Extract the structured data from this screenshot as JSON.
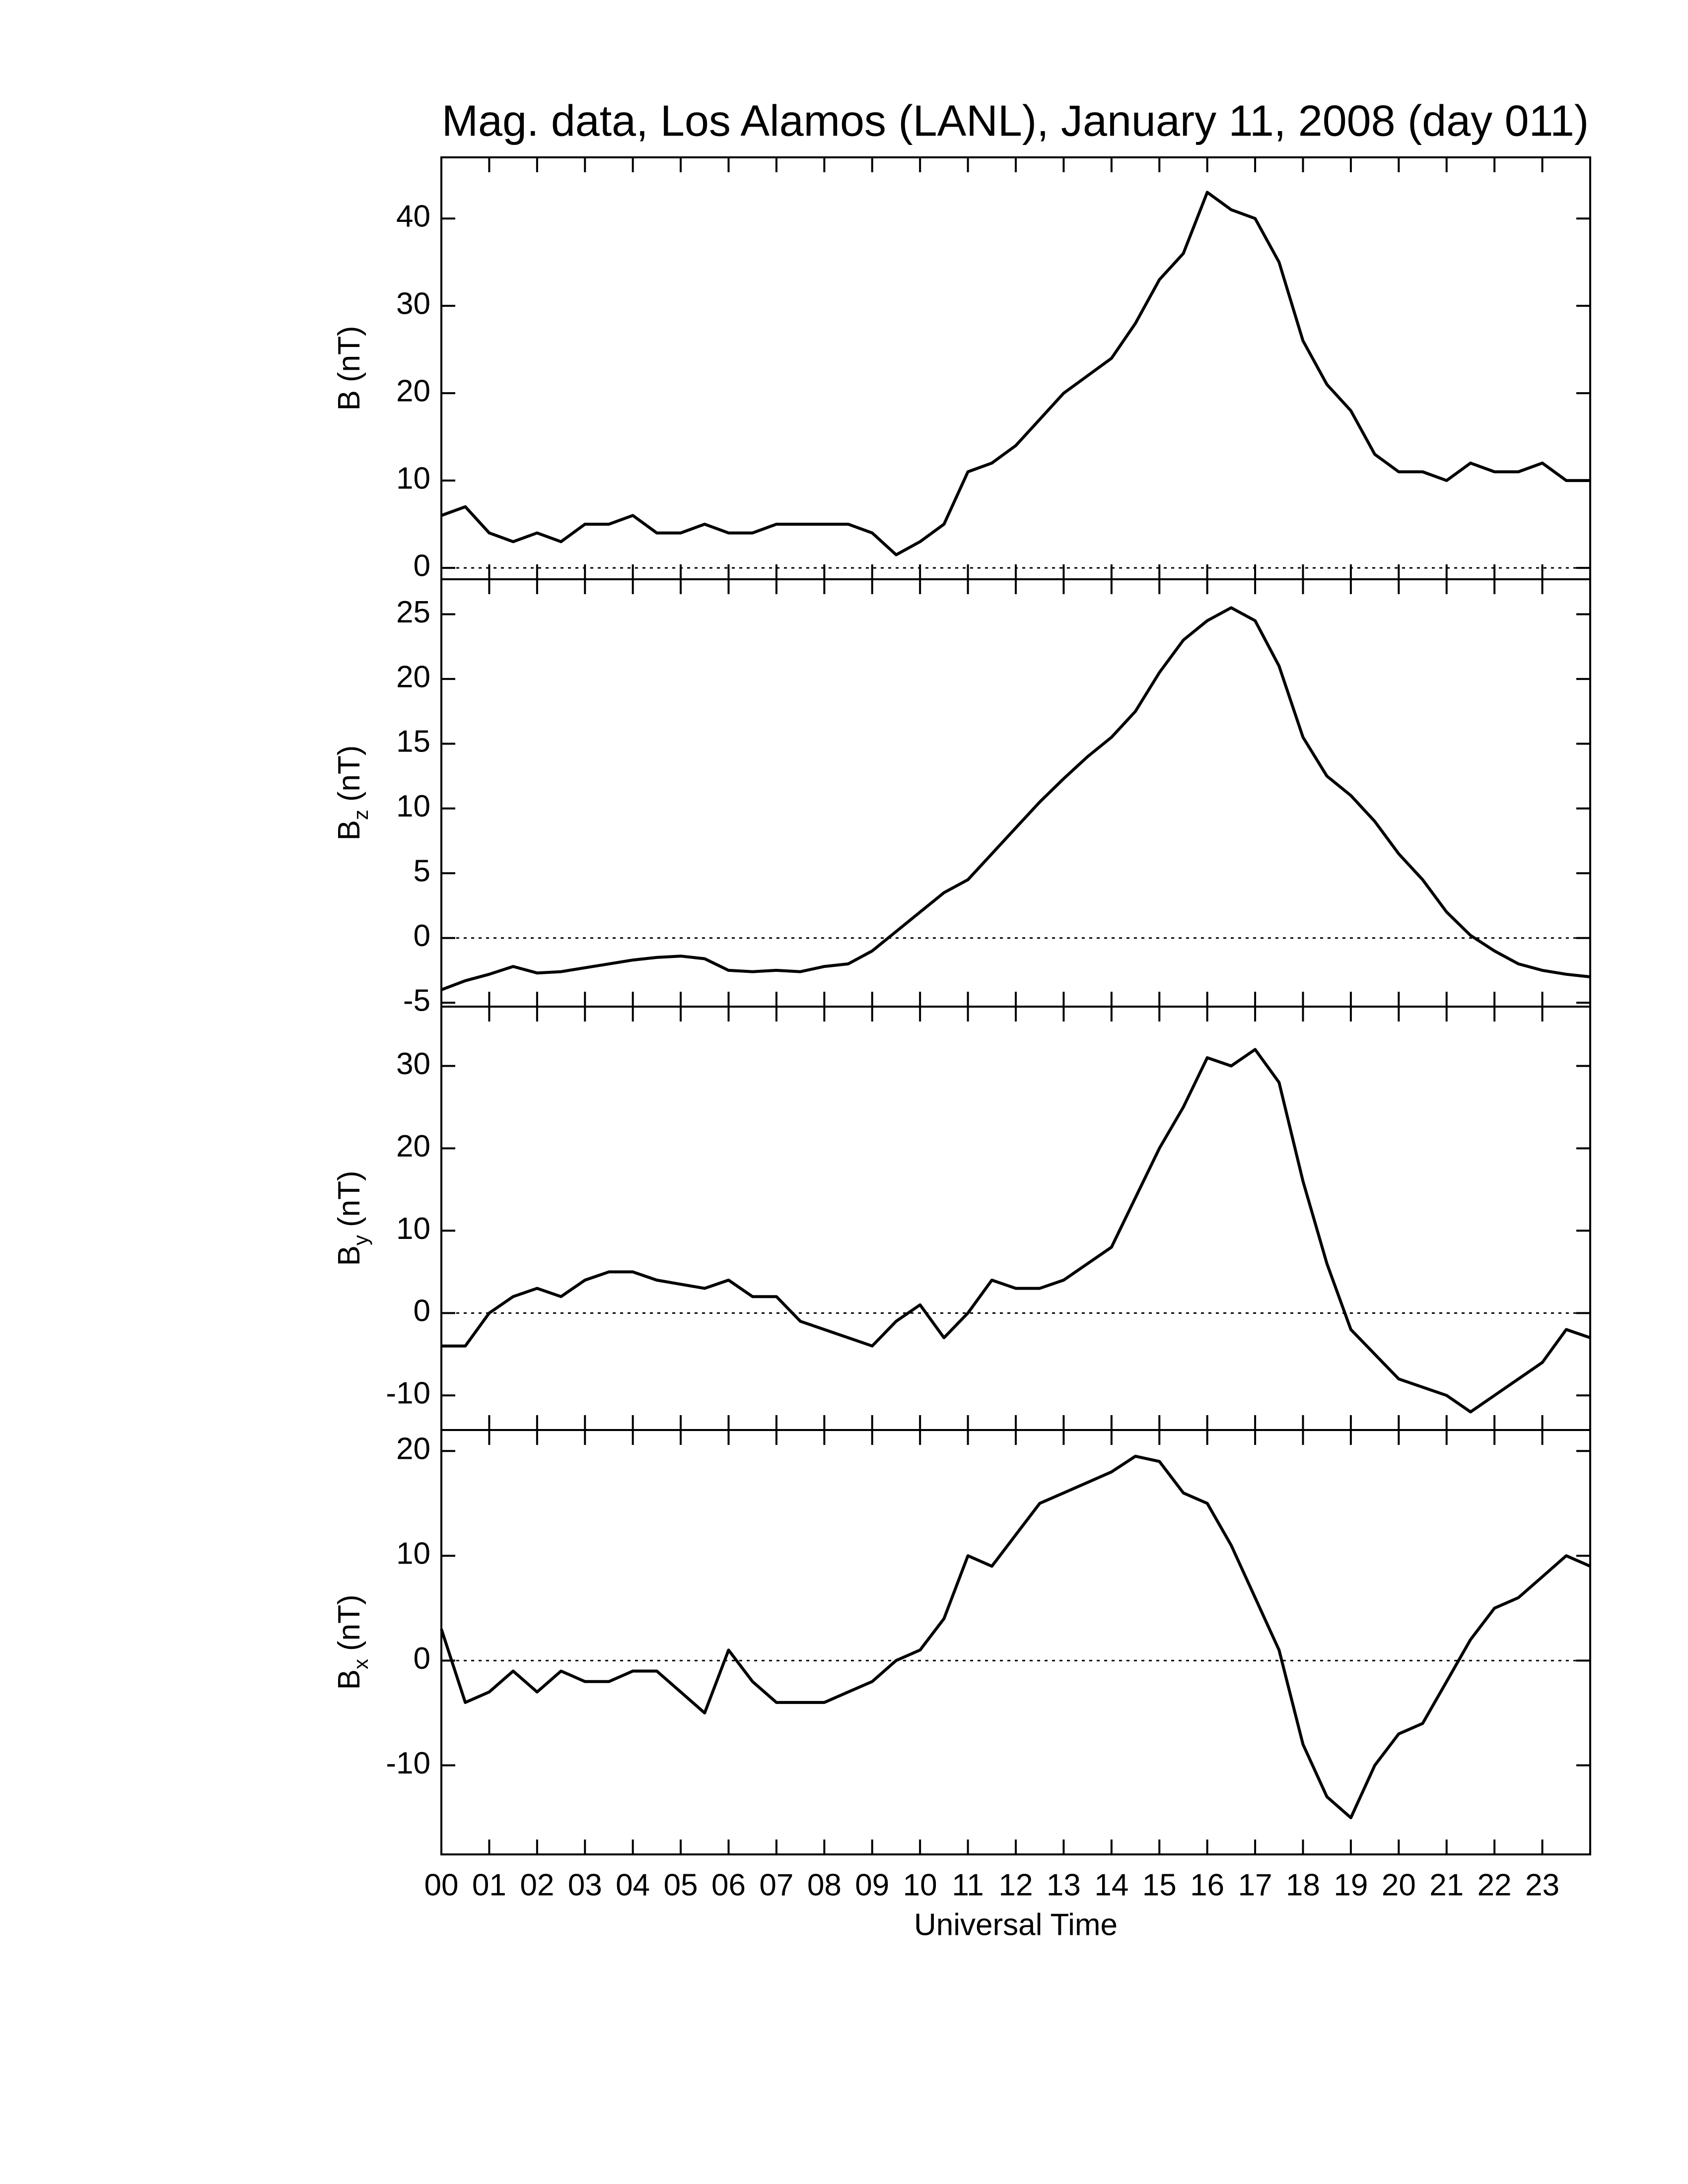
{
  "chart_data": [
    {
      "type": "line",
      "title": "Mag. data, Los Alamos (LANL), January 11, 2008 (day 011)",
      "ylabel": {
        "base": "B",
        "unit": "(nT)"
      },
      "x": [
        0,
        0.5,
        1,
        1.5,
        2,
        2.5,
        3,
        3.5,
        4,
        4.5,
        5,
        5.5,
        6,
        6.5,
        7,
        7.5,
        8,
        8.5,
        9,
        9.5,
        10,
        10.5,
        11,
        11.5,
        12,
        12.5,
        13,
        13.5,
        14,
        14.5,
        15,
        15.5,
        16,
        16.5,
        17,
        17.5,
        18,
        18.5,
        19,
        19.5,
        20,
        20.5,
        21,
        21.5,
        22,
        22.5,
        23,
        23.5,
        24
      ],
      "series": [
        {
          "color": "#000000",
          "values": [
            6,
            7,
            4,
            3,
            4,
            3,
            5,
            5,
            6,
            4,
            4,
            5,
            4,
            4,
            5,
            5,
            5,
            5,
            4,
            1.5,
            3,
            5,
            11,
            12,
            14,
            17,
            20,
            22,
            24,
            28,
            33,
            36,
            43,
            41,
            40,
            35,
            26,
            21,
            18,
            13,
            11,
            11,
            10,
            12,
            11,
            11,
            12,
            10,
            10
          ]
        }
      ],
      "xlim": [
        0,
        24
      ],
      "ylim": [
        -1.3,
        47
      ],
      "yticks": [
        0,
        10,
        20,
        30,
        40
      ],
      "zero_line": true
    },
    {
      "type": "line",
      "ylabel": {
        "base": "B",
        "sub": "z",
        "unit": "(nT)"
      },
      "x": [
        0,
        0.5,
        1,
        1.5,
        2,
        2.5,
        3,
        3.5,
        4,
        4.5,
        5,
        5.5,
        6,
        6.5,
        7,
        7.5,
        8,
        8.5,
        9,
        9.5,
        10,
        10.5,
        11,
        11.5,
        12,
        12.5,
        13,
        13.5,
        14,
        14.5,
        15,
        15.5,
        16,
        16.5,
        17,
        17.5,
        18,
        18.5,
        19,
        19.5,
        20,
        20.5,
        21,
        21.5,
        22,
        22.5,
        23,
        23.5,
        24
      ],
      "series": [
        {
          "color": "#000000",
          "values": [
            -4,
            -3.3,
            -2.8,
            -2.2,
            -2.7,
            -2.6,
            -2.3,
            -2,
            -1.7,
            -1.5,
            -1.4,
            -1.6,
            -2.5,
            -2.6,
            -2.5,
            -2.6,
            -2.2,
            -2,
            -1,
            0.5,
            2,
            3.5,
            4.5,
            6.5,
            8.5,
            10.5,
            12.3,
            14,
            15.5,
            17.5,
            20.5,
            23,
            24.5,
            25.5,
            24.5,
            21,
            15.5,
            12.5,
            11,
            9,
            6.5,
            4.5,
            2,
            0.2,
            -1,
            -2,
            -2.5,
            -2.8,
            -3
          ]
        }
      ],
      "xlim": [
        0,
        24
      ],
      "ylim": [
        -5.3,
        27.7
      ],
      "yticks": [
        -5,
        0,
        5,
        10,
        15,
        20,
        25
      ],
      "zero_line": true
    },
    {
      "type": "line",
      "ylabel": {
        "base": "B",
        "sub": "y",
        "unit": "(nT)"
      },
      "x": [
        0,
        0.5,
        1,
        1.5,
        2,
        2.5,
        3,
        3.5,
        4,
        4.5,
        5,
        5.5,
        6,
        6.5,
        7,
        7.5,
        8,
        8.5,
        9,
        9.5,
        10,
        10.5,
        11,
        11.5,
        12,
        12.5,
        13,
        13.5,
        14,
        14.5,
        15,
        15.5,
        16,
        16.5,
        17,
        17.5,
        18,
        18.5,
        19,
        19.5,
        20,
        20.5,
        21,
        21.5,
        22,
        22.5,
        23,
        23.5,
        24
      ],
      "series": [
        {
          "color": "#000000",
          "values": [
            -4,
            -4,
            0,
            2,
            3,
            2,
            4,
            5,
            5,
            4,
            3.5,
            3,
            4,
            2,
            2,
            -1,
            -2,
            -3,
            -4,
            -1,
            1,
            -3,
            0,
            4,
            3,
            3,
            4,
            6,
            8,
            14,
            20,
            25,
            31,
            30,
            32,
            28,
            16,
            6,
            -2,
            -5,
            -8,
            -9,
            -10,
            -12,
            -10,
            -8,
            -6,
            -2,
            -3
          ]
        }
      ],
      "xlim": [
        0,
        24
      ],
      "ylim": [
        -14.2,
        37.2
      ],
      "yticks": [
        -10,
        0,
        10,
        20,
        30
      ],
      "zero_line": true
    },
    {
      "type": "line",
      "ylabel": {
        "base": "B",
        "sub": "x",
        "unit": "(nT)"
      },
      "xlabel": "Universal Time",
      "x": [
        0,
        0.5,
        1,
        1.5,
        2,
        2.5,
        3,
        3.5,
        4,
        4.5,
        5,
        5.5,
        6,
        6.5,
        7,
        7.5,
        8,
        8.5,
        9,
        9.5,
        10,
        10.5,
        11,
        11.5,
        12,
        12.5,
        13,
        13.5,
        14,
        14.5,
        15,
        15.5,
        16,
        16.5,
        17,
        17.5,
        18,
        18.5,
        19,
        19.5,
        20,
        20.5,
        21,
        21.5,
        22,
        22.5,
        23,
        23.5,
        24
      ],
      "series": [
        {
          "color": "#000000",
          "values": [
            3,
            -4,
            -3,
            -1,
            -3,
            -1,
            -2,
            -2,
            -1,
            -1,
            -3,
            -5,
            1,
            -2,
            -4,
            -4,
            -4,
            -3,
            -2,
            0,
            1,
            4,
            10,
            9,
            12,
            15,
            16,
            17,
            18,
            19.5,
            19,
            16,
            15,
            11,
            6,
            1,
            -8,
            -13,
            -15,
            -10,
            -7,
            -6,
            -2,
            2,
            5,
            6,
            8,
            10,
            9
          ]
        }
      ],
      "xlim": [
        0,
        24
      ],
      "ylim": [
        -18.5,
        22
      ],
      "yticks": [
        -10,
        0,
        10,
        20
      ],
      "zero_line": true,
      "xticks": [
        {
          "value": 0,
          "label": "00"
        },
        {
          "value": 1,
          "label": "01"
        },
        {
          "value": 2,
          "label": "02"
        },
        {
          "value": 3,
          "label": "03"
        },
        {
          "value": 4,
          "label": "04"
        },
        {
          "value": 5,
          "label": "05"
        },
        {
          "value": 6,
          "label": "06"
        },
        {
          "value": 7,
          "label": "07"
        },
        {
          "value": 8,
          "label": "08"
        },
        {
          "value": 9,
          "label": "09"
        },
        {
          "value": 10,
          "label": "10"
        },
        {
          "value": 11,
          "label": "11"
        },
        {
          "value": 12,
          "label": "12"
        },
        {
          "value": 13,
          "label": "13"
        },
        {
          "value": 14,
          "label": "14"
        },
        {
          "value": 15,
          "label": "15"
        },
        {
          "value": 16,
          "label": "16"
        },
        {
          "value": 17,
          "label": "17"
        },
        {
          "value": 18,
          "label": "18"
        },
        {
          "value": 19,
          "label": "19"
        },
        {
          "value": 20,
          "label": "20"
        },
        {
          "value": 21,
          "label": "21"
        },
        {
          "value": 22,
          "label": "22"
        },
        {
          "value": 23,
          "label": "23"
        }
      ]
    }
  ]
}
